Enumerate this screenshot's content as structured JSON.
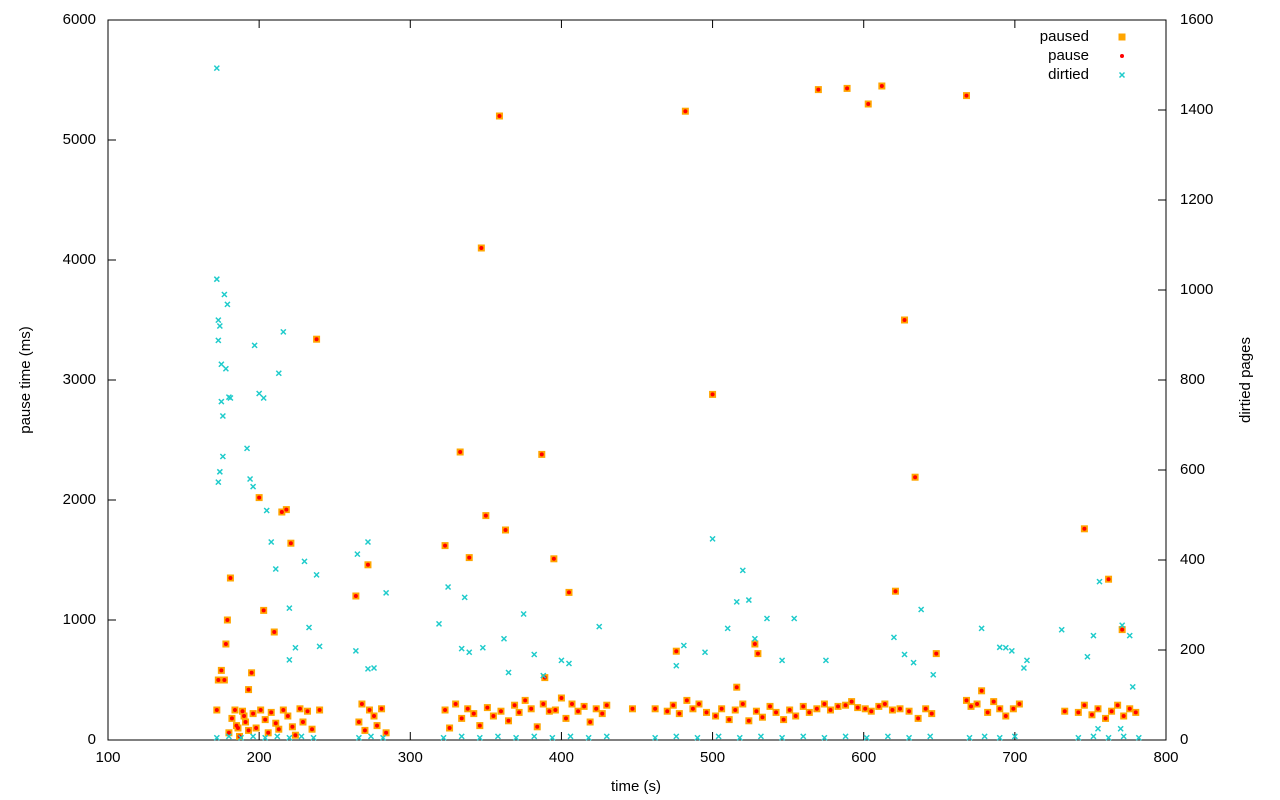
{
  "chart_data": {
    "type": "scatter",
    "x_label": "time (s)",
    "y_label": "pause time (ms)",
    "y2_label": "dirtied pages",
    "xlim": [
      100,
      800
    ],
    "xticks": [
      100,
      200,
      300,
      400,
      500,
      600,
      700,
      800
    ],
    "ylim": [
      0,
      6000
    ],
    "yticks": [
      0,
      1000,
      2000,
      3000,
      4000,
      5000,
      6000
    ],
    "y2lim": [
      0,
      1600
    ],
    "y2ticks": [
      0,
      200,
      400,
      600,
      800,
      1000,
      1200,
      1400,
      1600
    ],
    "grid": false,
    "legend": "top-right",
    "series": [
      {
        "name": "paused",
        "color": "#ffa500",
        "marker": "square",
        "x": [
          172,
          173,
          175,
          177,
          178,
          179,
          181,
          186,
          190,
          193,
          195,
          200,
          203,
          210,
          215,
          218,
          221,
          238,
          264,
          272,
          323,
          333,
          339,
          347,
          350,
          359,
          363,
          387,
          389,
          395,
          405,
          476,
          482,
          500,
          516,
          528,
          530,
          570,
          589,
          603,
          612,
          621,
          627,
          634,
          648,
          668,
          746,
          762,
          771,
          180,
          182,
          184,
          185,
          187,
          189,
          191,
          193,
          196,
          198,
          201,
          204,
          206,
          208,
          211,
          213,
          216,
          219,
          222,
          224,
          227,
          229,
          232,
          235,
          240,
          266,
          268,
          270,
          273,
          276,
          278,
          281,
          284,
          323,
          326,
          330,
          334,
          338,
          342,
          346,
          351,
          355,
          360,
          365,
          369,
          372,
          376,
          380,
          384,
          388,
          392,
          396,
          400,
          403,
          407,
          411,
          415,
          419,
          423,
          427,
          430,
          447,
          462,
          470,
          474,
          478,
          483,
          487,
          491,
          496,
          502,
          506,
          511,
          515,
          520,
          524,
          529,
          533,
          538,
          542,
          547,
          551,
          555,
          560,
          564,
          569,
          574,
          578,
          583,
          588,
          592,
          596,
          601,
          605,
          610,
          614,
          619,
          624,
          630,
          636,
          641,
          645,
          668,
          671,
          675,
          678,
          682,
          686,
          690,
          694,
          699,
          703,
          733,
          742,
          746,
          751,
          755,
          760,
          764,
          768,
          772,
          776,
          780
        ],
        "values": [
          250,
          500,
          580,
          500,
          800,
          1000,
          1350,
          100,
          200,
          420,
          560,
          2020,
          1080,
          900,
          1900,
          1920,
          1640,
          3340,
          1200,
          1460,
          1620,
          2400,
          1520,
          4100,
          1870,
          5200,
          1750,
          2380,
          520,
          1510,
          1230,
          740,
          5240,
          2880,
          440,
          800,
          720,
          5420,
          5430,
          5300,
          5450,
          1240,
          3500,
          2190,
          720,
          5370,
          1760,
          1340,
          920,
          60,
          180,
          250,
          120,
          30,
          240,
          150,
          80,
          220,
          100,
          250,
          170,
          60,
          230,
          140,
          90,
          250,
          200,
          110,
          40,
          260,
          150,
          240,
          90,
          250,
          150,
          300,
          80,
          250,
          200,
          120,
          260,
          60,
          250,
          100,
          300,
          180,
          260,
          220,
          120,
          270,
          200,
          240,
          160,
          290,
          230,
          330,
          260,
          110,
          300,
          240,
          250,
          350,
          180,
          300,
          240,
          280,
          150,
          260,
          220,
          290,
          260,
          260,
          240,
          290,
          220,
          330,
          260,
          300,
          230,
          200,
          260,
          170,
          250,
          300,
          160,
          240,
          190,
          280,
          230,
          170,
          250,
          200,
          280,
          230,
          260,
          300,
          250,
          280,
          290,
          320,
          270,
          260,
          240,
          280,
          300,
          250,
          260,
          240,
          180,
          260,
          220,
          330,
          280,
          300,
          410,
          230,
          320,
          260,
          200,
          260,
          300,
          240,
          230,
          290,
          210,
          260,
          180,
          240,
          290,
          200,
          260,
          230
        ]
      },
      {
        "name": "pause",
        "color": "#ff0000",
        "marker": "dot",
        "x": [
          172,
          173,
          175,
          177,
          178,
          179,
          181,
          186,
          190,
          193,
          195,
          200,
          203,
          210,
          215,
          218,
          221,
          238,
          264,
          272,
          323,
          333,
          339,
          347,
          350,
          359,
          363,
          387,
          389,
          395,
          405,
          476,
          482,
          500,
          516,
          528,
          530,
          570,
          589,
          603,
          612,
          621,
          627,
          634,
          648,
          668,
          746,
          762,
          771,
          180,
          182,
          184,
          185,
          187,
          189,
          191,
          193,
          196,
          198,
          201,
          204,
          206,
          208,
          211,
          213,
          216,
          219,
          222,
          224,
          227,
          229,
          232,
          235,
          240,
          266,
          268,
          270,
          273,
          276,
          278,
          281,
          284,
          323,
          326,
          330,
          334,
          338,
          342,
          346,
          351,
          355,
          360,
          365,
          369,
          372,
          376,
          380,
          384,
          388,
          392,
          396,
          400,
          403,
          407,
          411,
          415,
          419,
          423,
          427,
          430,
          447,
          462,
          470,
          474,
          478,
          483,
          487,
          491,
          496,
          502,
          506,
          511,
          515,
          520,
          524,
          529,
          533,
          538,
          542,
          547,
          551,
          555,
          560,
          564,
          569,
          574,
          578,
          583,
          588,
          592,
          596,
          601,
          605,
          610,
          614,
          619,
          624,
          630,
          636,
          641,
          645,
          668,
          671,
          675,
          678,
          682,
          686,
          690,
          694,
          699,
          703,
          733,
          742,
          746,
          751,
          755,
          760,
          764,
          768,
          772,
          776,
          780
        ],
        "values": [
          250,
          500,
          580,
          500,
          800,
          1000,
          1350,
          100,
          200,
          420,
          560,
          2020,
          1080,
          900,
          1900,
          1920,
          1640,
          3340,
          1200,
          1460,
          1620,
          2400,
          1520,
          4100,
          1870,
          5200,
          1750,
          2380,
          520,
          1510,
          1230,
          740,
          5240,
          2880,
          440,
          800,
          720,
          5420,
          5430,
          5300,
          5450,
          1240,
          3500,
          2190,
          720,
          5370,
          1760,
          1340,
          920,
          60,
          180,
          250,
          120,
          30,
          240,
          150,
          80,
          220,
          100,
          250,
          170,
          60,
          230,
          140,
          90,
          250,
          200,
          110,
          40,
          260,
          150,
          240,
          90,
          250,
          150,
          300,
          80,
          250,
          200,
          120,
          260,
          60,
          250,
          100,
          300,
          180,
          260,
          220,
          120,
          270,
          200,
          240,
          160,
          290,
          230,
          330,
          260,
          110,
          300,
          240,
          250,
          350,
          180,
          300,
          240,
          280,
          150,
          260,
          220,
          290,
          260,
          260,
          240,
          290,
          220,
          330,
          260,
          300,
          230,
          200,
          260,
          170,
          250,
          300,
          160,
          240,
          190,
          280,
          230,
          170,
          250,
          200,
          280,
          230,
          260,
          300,
          250,
          280,
          290,
          320,
          270,
          260,
          240,
          280,
          300,
          250,
          260,
          240,
          180,
          260,
          220,
          330,
          280,
          300,
          410,
          230,
          320,
          260,
          200,
          260,
          300,
          240,
          230,
          290,
          210,
          260,
          180,
          240,
          290,
          200,
          260,
          230
        ]
      },
      {
        "name": "dirtied",
        "color": "#1ecbcb",
        "marker": "cross",
        "axis": "y2",
        "x": [
          172,
          172,
          173,
          173,
          174,
          175,
          175,
          176,
          177,
          178,
          179,
          180,
          181,
          176,
          174,
          173,
          192,
          194,
          196,
          197,
          200,
          203,
          205,
          208,
          211,
          213,
          216,
          220,
          220,
          224,
          230,
          233,
          238,
          240,
          264,
          265,
          272,
          272,
          276,
          284,
          319,
          325,
          334,
          336,
          339,
          348,
          362,
          365,
          375,
          382,
          388,
          400,
          405,
          425,
          476,
          481,
          495,
          500,
          510,
          516,
          520,
          524,
          528,
          536,
          546,
          554,
          575,
          620,
          627,
          633,
          638,
          646,
          678,
          690,
          694,
          698,
          706,
          708,
          731,
          748,
          752,
          756,
          771,
          776,
          778,
          770,
          755,
          172,
          180,
          188,
          196,
          204,
          212,
          220,
          228,
          236,
          266,
          274,
          282,
          322,
          334,
          346,
          358,
          370,
          382,
          394,
          406,
          418,
          430,
          462,
          476,
          490,
          504,
          518,
          532,
          546,
          560,
          574,
          588,
          602,
          616,
          630,
          644,
          670,
          680,
          690,
          700,
          742,
          752,
          762,
          772,
          782
        ],
        "values": [
          1493,
          1024,
          933,
          888,
          920,
          835,
          752,
          720,
          990,
          825,
          968,
          762,
          760,
          630,
          596,
          573,
          648,
          580,
          563,
          877,
          770,
          760,
          510,
          440,
          380,
          815,
          907,
          293,
          178,
          205,
          397,
          250,
          367,
          208,
          198,
          413,
          440,
          158,
          160,
          327,
          258,
          340,
          203,
          317,
          195,
          205,
          225,
          150,
          280,
          190,
          143,
          177,
          170,
          252,
          165,
          210,
          195,
          447,
          248,
          307,
          377,
          311,
          225,
          270,
          177,
          270,
          177,
          228,
          190,
          172,
          290,
          145,
          248,
          206,
          205,
          198,
          160,
          177,
          245,
          185,
          232,
          352,
          255,
          232,
          118,
          25,
          25,
          5,
          8,
          5,
          8,
          5,
          8,
          5,
          8,
          5,
          5,
          8,
          5,
          5,
          8,
          5,
          8,
          5,
          8,
          5,
          8,
          5,
          8,
          5,
          8,
          5,
          8,
          5,
          8,
          5,
          8,
          5,
          8,
          5,
          8,
          5,
          8,
          5,
          8,
          5,
          8,
          5,
          8,
          5,
          8,
          5
        ]
      }
    ]
  }
}
